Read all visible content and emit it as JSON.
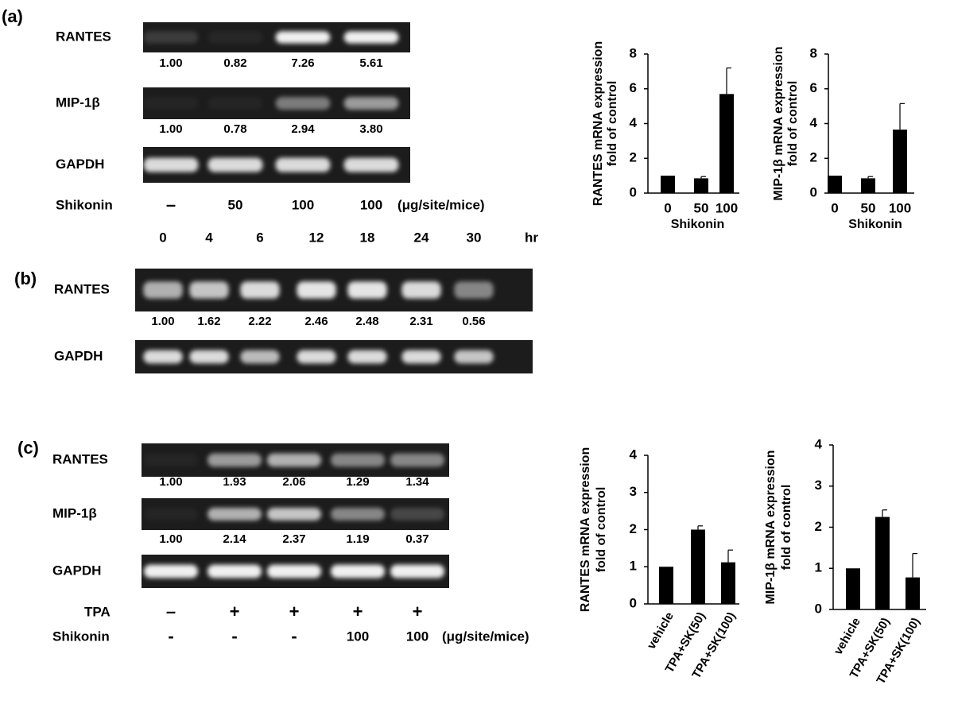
{
  "panels": [
    {
      "label": "(a)",
      "gels": [
        {
          "name": "RANTES",
          "quant": [
            "1.00",
            "0.82",
            "7.26",
            "5.61"
          ]
        },
        {
          "name": "MIP-1β",
          "quant": [
            "1.00",
            "0.78",
            "2.94",
            "3.80"
          ]
        },
        {
          "name": "GAPDH"
        }
      ],
      "treatments": [
        {
          "name": "Shikonin",
          "lanes": [
            "–",
            "50",
            "100",
            "100"
          ],
          "unit": "(μg/site/mice)"
        }
      ]
    },
    {
      "label": "(b)",
      "lanes": [
        "0",
        "4",
        "6",
        "12",
        "18",
        "24",
        "30"
      ],
      "lane_unit": "hr",
      "gels": [
        {
          "name": "RANTES",
          "quant": [
            "1.00",
            "1.62",
            "2.22",
            "2.46",
            "2.48",
            "2.31",
            "0.56"
          ]
        },
        {
          "name": "GAPDH"
        }
      ]
    },
    {
      "label": "(c)",
      "gels": [
        {
          "name": "RANTES",
          "quant": [
            "1.00",
            "1.93",
            "2.06",
            "1.29",
            "1.34"
          ]
        },
        {
          "name": "MIP-1β",
          "quant": [
            "1.00",
            "2.14",
            "2.37",
            "1.19",
            "0.37"
          ]
        },
        {
          "name": "GAPDH"
        }
      ],
      "treatments": [
        {
          "name": "TPA",
          "lanes": [
            "–",
            "+",
            "+",
            "+",
            "+"
          ]
        },
        {
          "name": "Shikonin",
          "lanes": [
            "-",
            "-",
            "-",
            "100",
            "100"
          ],
          "unit": "(μg/site/mice)"
        }
      ]
    }
  ],
  "chart_data": [
    {
      "type": "bar",
      "ylabel": [
        "RANTES mRNA expression",
        "fold of control"
      ],
      "xlabel": "Shikonin",
      "categories": [
        "0",
        "50",
        "100"
      ],
      "values": [
        1,
        0.85,
        5.7
      ],
      "errors": [
        0,
        0.1,
        1.5
      ],
      "ylim": [
        0,
        8
      ],
      "yticks": [
        0,
        2,
        4,
        6,
        8
      ],
      "color": "#000000"
    },
    {
      "type": "bar",
      "ylabel": [
        "MIP-1β mRNA expression",
        "fold of control"
      ],
      "xlabel": "Shikonin",
      "categories": [
        "0",
        "50",
        "100"
      ],
      "values": [
        1,
        0.85,
        3.65
      ],
      "errors": [
        0,
        0.1,
        1.5
      ],
      "ylim": [
        0,
        8
      ],
      "yticks": [
        0,
        2,
        4,
        6,
        8
      ],
      "color": "#000000"
    },
    {
      "type": "bar",
      "ylabel": [
        "RANTES mRNA expression",
        "fold of control"
      ],
      "categories": [
        "vehicle",
        "TPA+SK(50)",
        "TPA+SK(100)"
      ],
      "values": [
        1,
        2,
        1.12
      ],
      "errors": [
        0,
        0.1,
        0.33
      ],
      "ylim": [
        0,
        4
      ],
      "yticks": [
        0,
        1,
        2,
        3,
        4
      ],
      "color": "#000000"
    },
    {
      "type": "bar",
      "ylabel": [
        "MIP-1β mRNA expression",
        "fold of control"
      ],
      "categories": [
        "vehicle",
        "TPA+SK(50)",
        "TPA+SK(100)"
      ],
      "values": [
        1,
        2.25,
        0.78
      ],
      "errors": [
        0,
        0.17,
        0.58
      ],
      "ylim": [
        0,
        4
      ],
      "yticks": [
        0,
        1,
        2,
        3,
        4
      ],
      "color": "#000000"
    }
  ]
}
